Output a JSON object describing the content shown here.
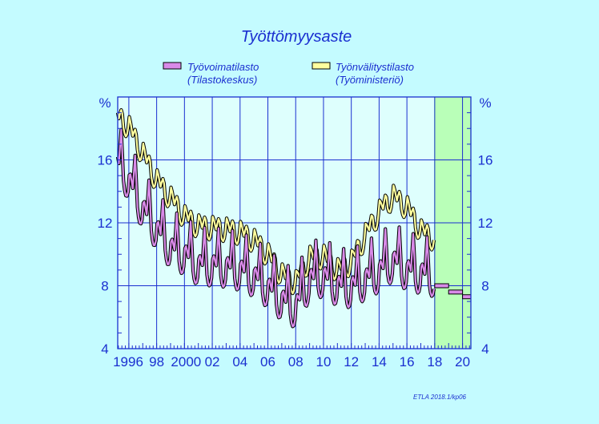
{
  "chart_data": {
    "type": "line",
    "title": "Työttömyysaste",
    "unit_label": "%",
    "credit": "ETLA 2018.1/kp06",
    "x_tick_labels": [
      "1996",
      "98",
      "2000",
      "02",
      "04",
      "06",
      "08",
      "10",
      "12",
      "14",
      "16",
      "18",
      "20"
    ],
    "x_tick_years": [
      1996,
      1998,
      2000,
      2002,
      2004,
      2006,
      2008,
      2010,
      2012,
      2014,
      2016,
      2018,
      2020
    ],
    "xlim": [
      1995.2,
      2020.6
    ],
    "ylim": [
      4,
      20
    ],
    "y_ticks": [
      4,
      8,
      12,
      16
    ],
    "y_tick_labels": [
      "4",
      "8",
      "12",
      "16"
    ],
    "grid": true,
    "legend_position": "top",
    "forecast_region": {
      "start": 2017.95,
      "end": 2020.6,
      "color": "#b9ffb8"
    },
    "series": [
      {
        "name": "Työvoimatilasto",
        "name_line2": "(Tilastokeskus)",
        "color": "#d98ae8",
        "monthly_start": 1995.2,
        "annual_trend": [
          [
            1995.2,
            15.7
          ],
          [
            1996,
            14.5
          ],
          [
            1997,
            12.7
          ],
          [
            1998,
            11.4
          ],
          [
            1999,
            10.2
          ],
          [
            2000,
            9.8
          ],
          [
            2001,
            9.1
          ],
          [
            2002,
            9.1
          ],
          [
            2003,
            9.0
          ],
          [
            2004,
            8.8
          ],
          [
            2005,
            8.4
          ],
          [
            2006,
            7.7
          ],
          [
            2007,
            6.9
          ],
          [
            2008,
            6.4
          ],
          [
            2009,
            8.2
          ],
          [
            2010,
            8.4
          ],
          [
            2011,
            7.8
          ],
          [
            2012,
            7.7
          ],
          [
            2013,
            8.2
          ],
          [
            2014,
            8.7
          ],
          [
            2015,
            9.4
          ],
          [
            2016,
            8.8
          ],
          [
            2017,
            8.6
          ],
          [
            2017.95,
            8.4
          ]
        ],
        "seasonal": [
          0.6,
          0.8,
          0.5,
          0.2,
          1.4,
          2.6,
          1.2,
          -0.4,
          -0.9,
          -1.1,
          -1.0,
          -0.6
        ],
        "forecast": [
          {
            "from": 2018,
            "to": 2019,
            "value": 8.0
          },
          {
            "from": 2019,
            "to": 2020,
            "value": 7.6
          },
          {
            "from": 2020,
            "to": 2020.6,
            "value": 7.3
          }
        ]
      },
      {
        "name": "Työnvälitystilasto",
        "name_line2": "(Työministeriö)",
        "color": "#ffff9e",
        "monthly_start": 1995.2,
        "annual_trend": [
          [
            1995.2,
            18.7
          ],
          [
            1996,
            18.0
          ],
          [
            1997,
            16.3
          ],
          [
            1998,
            14.6
          ],
          [
            1999,
            13.5
          ],
          [
            2000,
            12.3
          ],
          [
            2001,
            11.7
          ],
          [
            2002,
            11.6
          ],
          [
            2003,
            11.5
          ],
          [
            2004,
            11.3
          ],
          [
            2005,
            10.8
          ],
          [
            2006,
            9.9
          ],
          [
            2007,
            8.6
          ],
          [
            2008,
            8.1
          ],
          [
            2009,
            9.7
          ],
          [
            2010,
            9.8
          ],
          [
            2011,
            8.9
          ],
          [
            2012,
            9.4
          ],
          [
            2013,
            11.1
          ],
          [
            2014,
            12.6
          ],
          [
            2015,
            13.6
          ],
          [
            2016,
            12.9
          ],
          [
            2017,
            11.4
          ],
          [
            2017.95,
            10.9
          ]
        ],
        "seasonal": [
          0.8,
          0.6,
          0.3,
          0.0,
          0.4,
          0.7,
          0.5,
          -0.3,
          -0.6,
          -0.7,
          -0.5,
          0.0
        ]
      }
    ]
  }
}
